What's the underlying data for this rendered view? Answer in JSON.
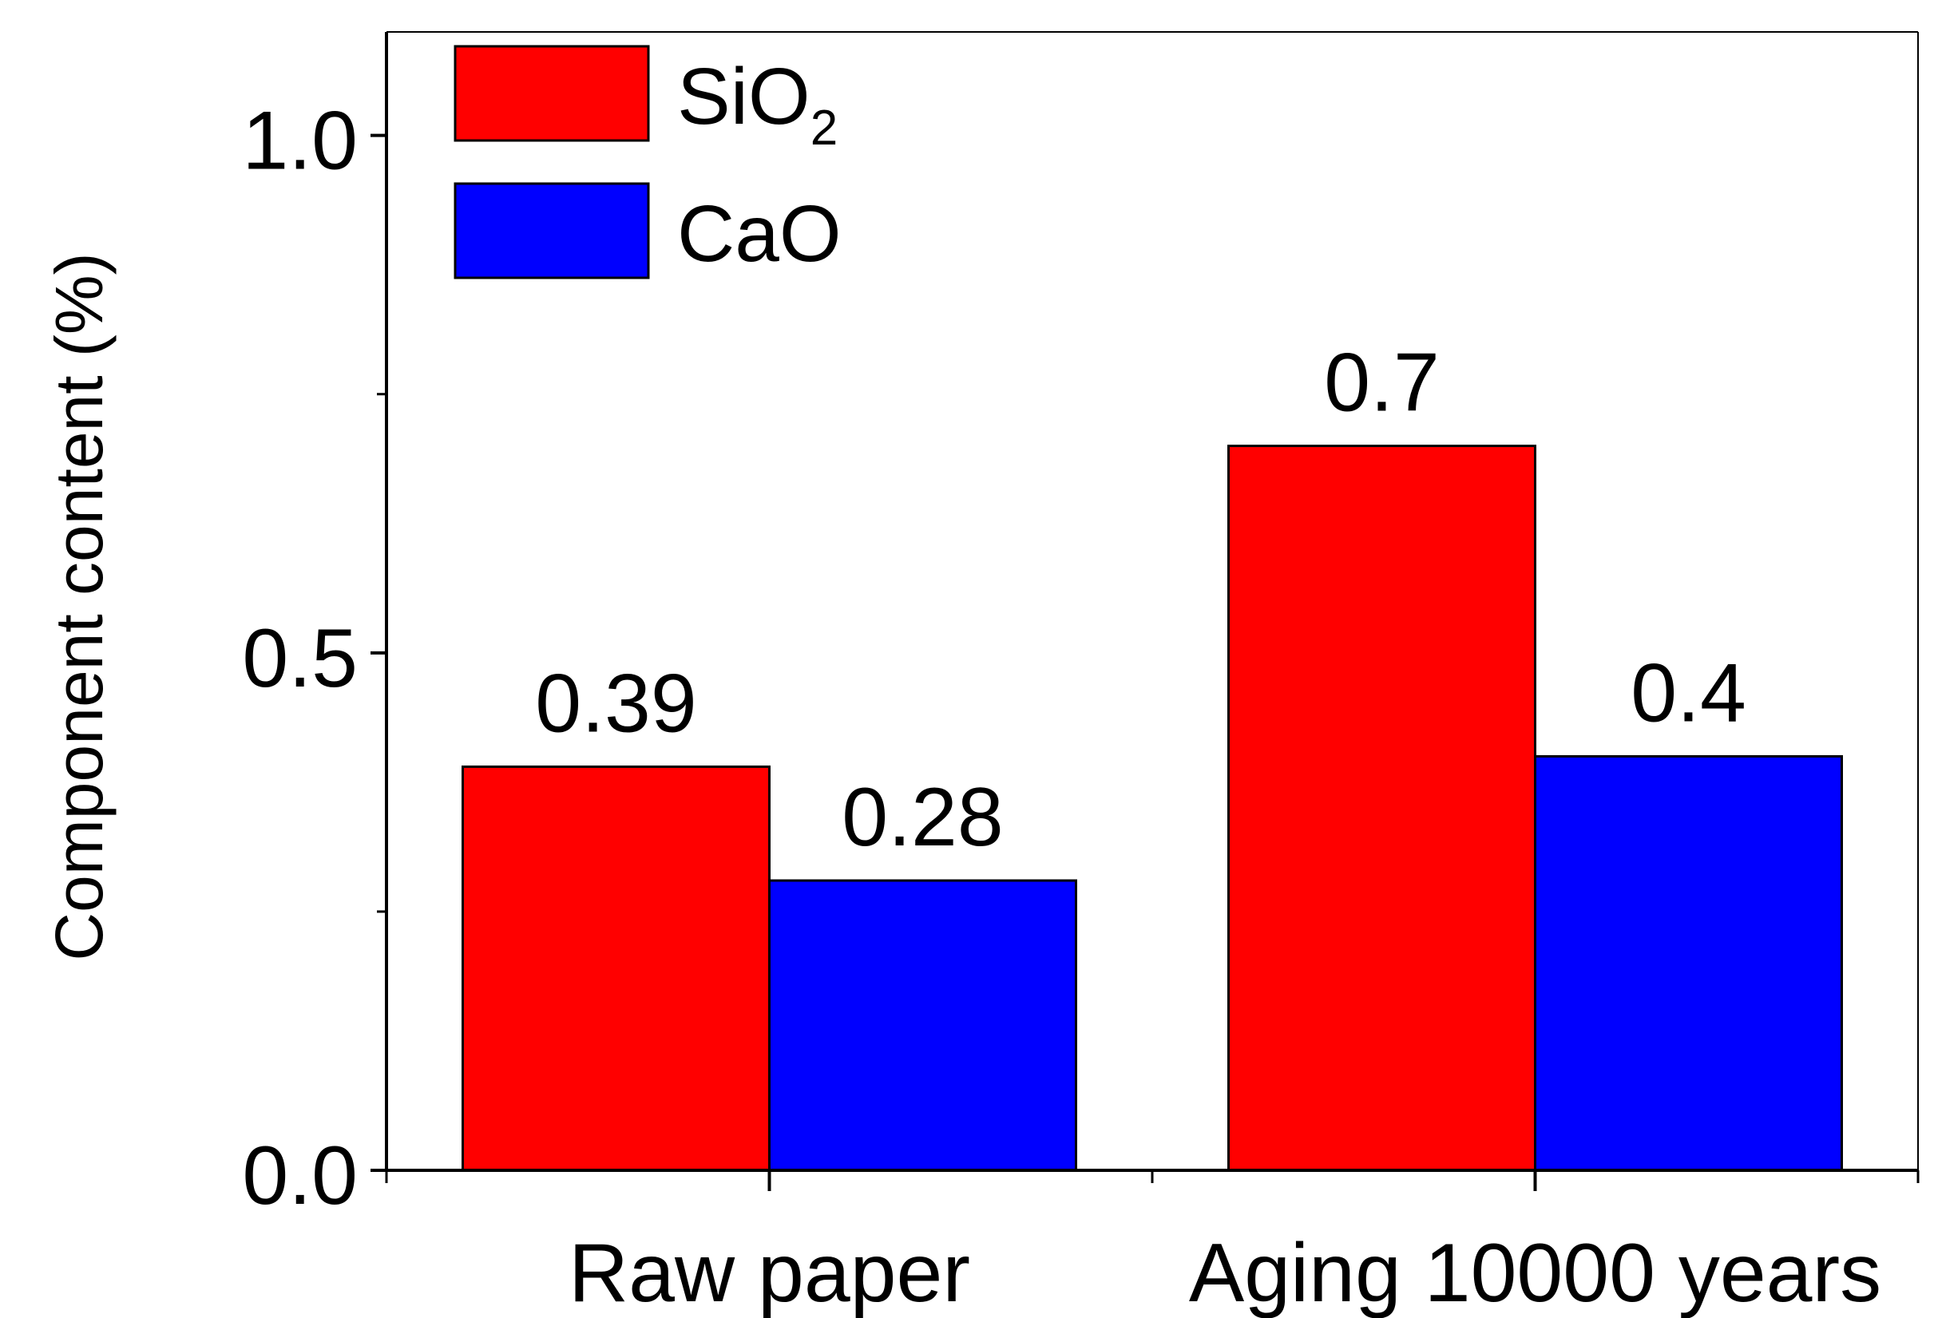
{
  "chart_data": {
    "type": "bar",
    "title": "",
    "xlabel": "",
    "ylabel": "Component content (%)",
    "ylim": [
      0,
      1.1
    ],
    "yticks": [
      0.0,
      0.5,
      1.0
    ],
    "ytick_labels": [
      "0.0",
      "0.5",
      "1.0"
    ],
    "categories": [
      "Raw paper",
      "Aging 10000 years"
    ],
    "series": [
      {
        "name": "SiO2",
        "legend_base": "SiO",
        "legend_sub": "2",
        "color": "#ff0000",
        "values": [
          0.39,
          0.7
        ],
        "labels": [
          "0.39",
          "0.7"
        ]
      },
      {
        "name": "CaO",
        "legend_base": "CaO",
        "legend_sub": "",
        "color": "#0000ff",
        "values": [
          0.28,
          0.4
        ],
        "labels": [
          "0.28",
          "0.4"
        ]
      }
    ],
    "legend_position": "top-left",
    "grid": false
  }
}
